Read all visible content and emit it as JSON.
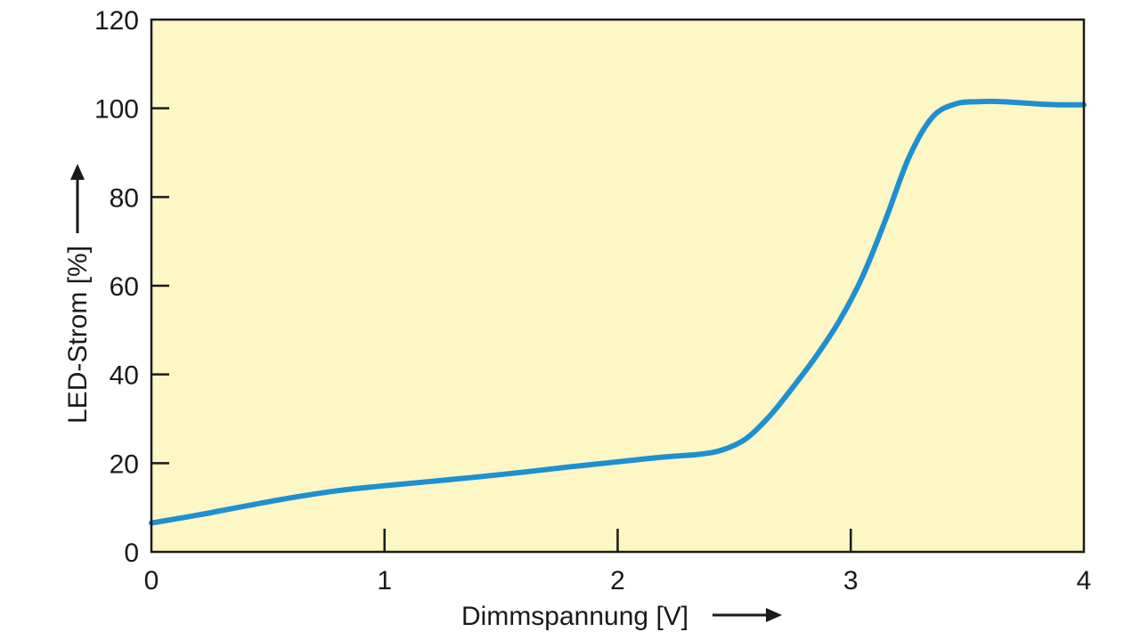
{
  "chart_data": {
    "type": "line",
    "title": "",
    "xlabel": "Dimmspannung [V]",
    "ylabel": "LED-Strom [%]",
    "xlim": [
      0,
      4
    ],
    "ylim": [
      0,
      120
    ],
    "x_ticks": [
      0,
      1,
      2,
      3,
      4
    ],
    "y_ticks": [
      0,
      20,
      40,
      60,
      80,
      100,
      120
    ],
    "grid": false,
    "legend": "none",
    "colors": {
      "plot_background": "#fcf7c5",
      "line": "#1f8fd0",
      "axis": "#1a1a1a"
    },
    "series": [
      {
        "x": [
          0,
          0.2,
          0.4,
          0.6,
          0.8,
          1.0,
          1.2,
          1.4,
          1.6,
          1.8,
          2.0,
          2.2,
          2.35,
          2.45,
          2.55,
          2.65,
          2.75,
          2.85,
          2.95,
          3.05,
          3.15,
          3.25,
          3.35,
          3.45,
          3.55,
          3.65,
          3.8,
          3.9,
          4.0
        ],
        "y": [
          6.5,
          8.3,
          10.3,
          12.2,
          13.8,
          14.9,
          15.9,
          16.9,
          18.0,
          19.2,
          20.3,
          21.4,
          22.0,
          23.0,
          25.5,
          30.5,
          37.0,
          44.0,
          52.0,
          62.0,
          75.0,
          89.0,
          98.0,
          101.0,
          101.5,
          101.5,
          101.0,
          100.8,
          100.8
        ]
      }
    ]
  }
}
